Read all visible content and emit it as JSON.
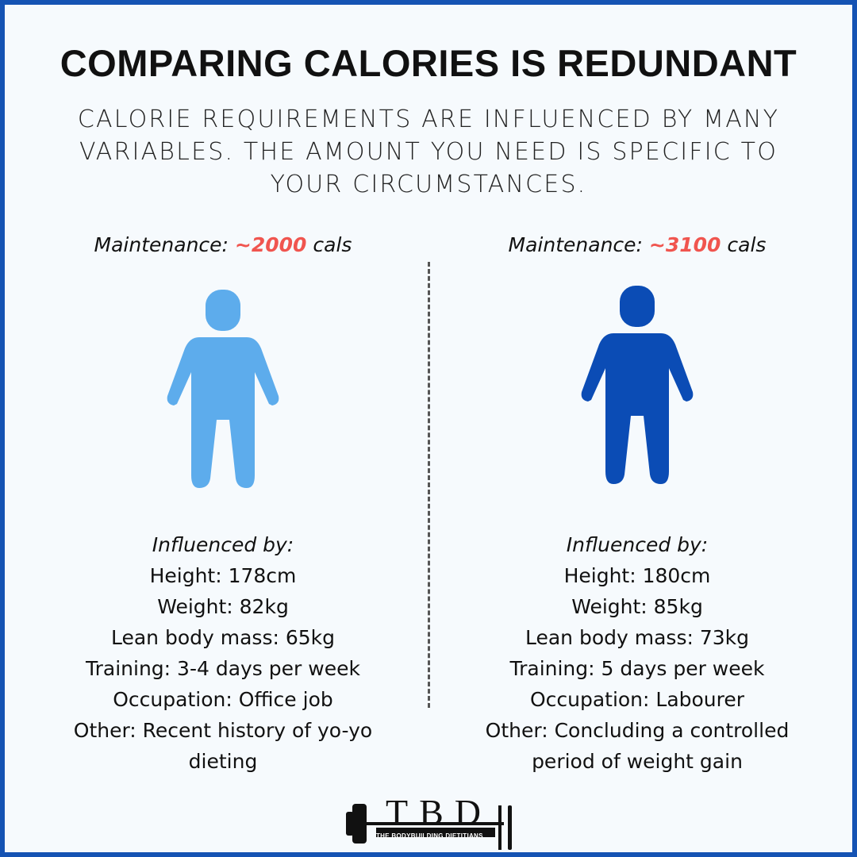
{
  "title": "COMPARING CALORIES IS REDUNDANT",
  "subtitle": "CALORIE REQUIREMENTS ARE INFLUENCED BY MANY VARIABLES. THE AMOUNT YOU NEED IS SPECIFIC TO YOUR CIRCUMSTANCES.",
  "columns": [
    {
      "maintenance": {
        "label": "Maintenance:",
        "amount": "~2000",
        "unit": "cals"
      },
      "heading": "Influenced by:",
      "lines": [
        "Height: 178cm",
        "Weight: 82kg",
        "Lean body mass: 65kg",
        "Training: 3-4 days per week",
        "Occupation: Office job",
        "Other: Recent history of yo-yo dieting"
      ]
    },
    {
      "maintenance": {
        "label": "Maintenance:",
        "amount": "~3100",
        "unit": "cals"
      },
      "heading": "Influenced by:",
      "lines": [
        "Height: 180cm",
        "Weight: 85kg",
        "Lean body mass: 73kg",
        "Training: 5 days per week",
        "Occupation: Labourer",
        "Other: Concluding a controlled period of weight gain"
      ]
    }
  ],
  "logo": {
    "letters": "TBD",
    "tagline": "THE BODYBUILDING DIETITIANS"
  }
}
